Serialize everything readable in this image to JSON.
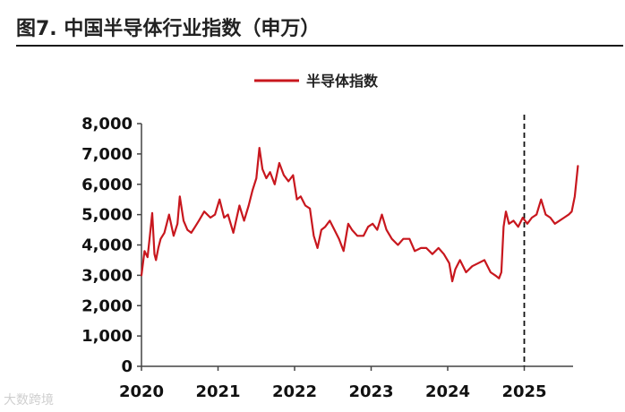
{
  "figure": {
    "title": "图7. 中国半导体行业指数（申万）"
  },
  "watermark": "大数跨境",
  "chart_data": {
    "type": "line",
    "title": "图7. 中国半导体行业指数（申万）",
    "xlabel": "",
    "ylabel": "",
    "ylim": [
      0,
      8000
    ],
    "xlim": [
      2020.0,
      2025.72
    ],
    "y_ticks": [
      0,
      1000,
      2000,
      3000,
      4000,
      5000,
      6000,
      7000,
      8000
    ],
    "y_tick_labels": [
      "0",
      "1,000",
      "2,000",
      "3,000",
      "4,000",
      "5,000",
      "6,000",
      "7,000",
      "8,000"
    ],
    "x_ticks": [
      2020,
      2021,
      2022,
      2023,
      2024,
      2025
    ],
    "x_tick_labels": [
      "2020",
      "2021",
      "2022",
      "2023",
      "2024",
      "2025"
    ],
    "grid": false,
    "legend": "top-center",
    "annotations": [
      {
        "type": "vertical-dashed-line",
        "x": 2025.0
      }
    ],
    "series": [
      {
        "name": "半导体指数",
        "color": "#c8171e",
        "x": [
          2020.0,
          2020.04,
          2020.08,
          2020.11,
          2020.14,
          2020.17,
          2020.19,
          2020.22,
          2020.25,
          2020.3,
          2020.36,
          2020.42,
          2020.47,
          2020.5,
          2020.55,
          2020.6,
          2020.65,
          2020.7,
          2020.75,
          2020.82,
          2020.9,
          2020.96,
          2021.02,
          2021.08,
          2021.13,
          2021.2,
          2021.28,
          2021.34,
          2021.4,
          2021.45,
          2021.5,
          2021.54,
          2021.58,
          2021.63,
          2021.68,
          2021.74,
          2021.8,
          2021.86,
          2021.92,
          2021.98,
          2022.03,
          2022.08,
          2022.14,
          2022.2,
          2022.25,
          2022.3,
          2022.35,
          2022.4,
          2022.46,
          2022.52,
          2022.58,
          2022.64,
          2022.7,
          2022.75,
          2022.82,
          2022.9,
          2022.96,
          2023.02,
          2023.08,
          2023.14,
          2023.2,
          2023.27,
          2023.35,
          2023.42,
          2023.5,
          2023.57,
          2023.65,
          2023.72,
          2023.8,
          2023.88,
          2023.95,
          2024.02,
          2024.06,
          2024.1,
          2024.16,
          2024.24,
          2024.32,
          2024.4,
          2024.48,
          2024.56,
          2024.62,
          2024.67,
          2024.7,
          2024.73,
          2024.76,
          2024.8,
          2024.86,
          2024.92,
          2024.98,
          2025.04,
          2025.1,
          2025.16,
          2025.22,
          2025.28,
          2025.34,
          2025.4,
          2025.46,
          2025.52,
          2025.58,
          2025.62,
          2025.66,
          2025.7
        ],
        "values": [
          3000,
          3800,
          3600,
          4300,
          5050,
          3700,
          3500,
          3900,
          4200,
          4400,
          5000,
          4300,
          4700,
          5600,
          4800,
          4500,
          4400,
          4600,
          4800,
          5100,
          4900,
          5000,
          5500,
          4900,
          5000,
          4400,
          5300,
          4800,
          5300,
          5800,
          6200,
          7200,
          6500,
          6200,
          6400,
          6000,
          6700,
          6300,
          6100,
          6300,
          5500,
          5600,
          5300,
          5200,
          4300,
          3900,
          4500,
          4600,
          4800,
          4500,
          4200,
          3800,
          4700,
          4500,
          4300,
          4300,
          4600,
          4700,
          4500,
          5000,
          4500,
          4200,
          4000,
          4200,
          4200,
          3800,
          3900,
          3900,
          3700,
          3900,
          3700,
          3400,
          2800,
          3200,
          3500,
          3100,
          3300,
          3400,
          3500,
          3100,
          3000,
          2900,
          3100,
          4600,
          5100,
          4700,
          4800,
          4600,
          4900,
          4700,
          4900,
          5000,
          5500,
          5000,
          4900,
          4700,
          4800,
          4900,
          5000,
          5100,
          5600,
          6600
        ]
      }
    ]
  }
}
